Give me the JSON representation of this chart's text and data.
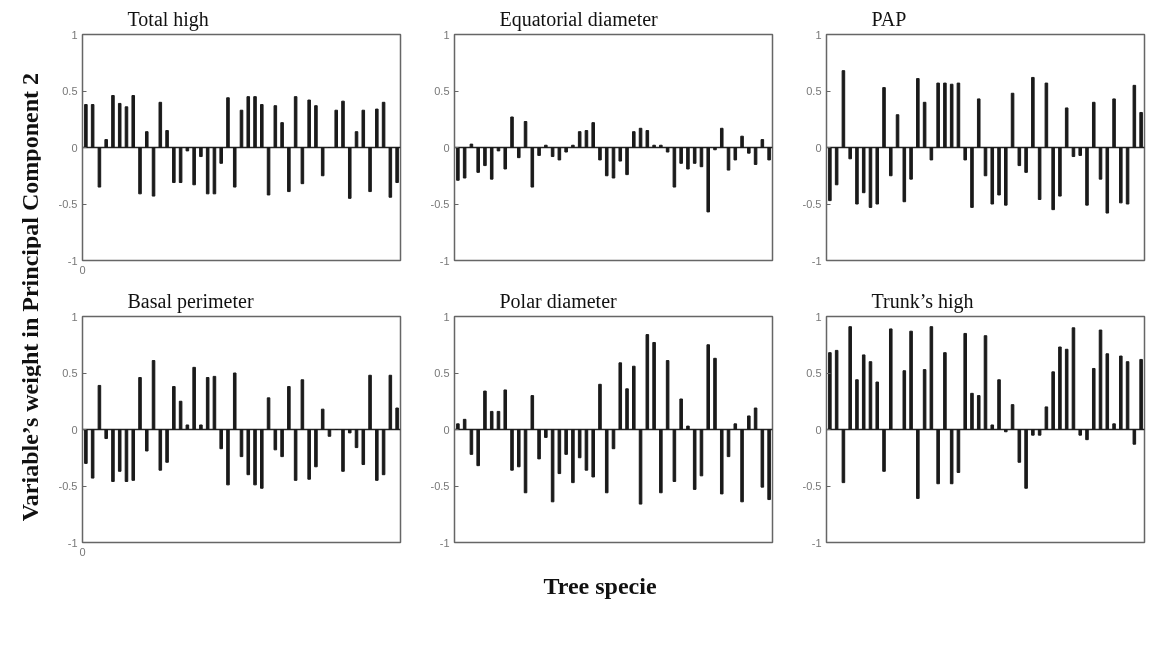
{
  "chart_data": [
    {
      "type": "bar",
      "title": "Total high",
      "ylabel": "Variable’s weight in Principal Component 2",
      "annotations": [
        "0"
      ],
      "categories": [
        null,
        null,
        null,
        null,
        null,
        null,
        null,
        null,
        null,
        null,
        null,
        null,
        null,
        null,
        null,
        null,
        null,
        null,
        null,
        null,
        null,
        null,
        null,
        null,
        null,
        null,
        null,
        null,
        null,
        null,
        null,
        null,
        null,
        null,
        null,
        null,
        null,
        null,
        null,
        null,
        null,
        null,
        null,
        null,
        null,
        null,
        null
      ],
      "values": [
        0.38,
        0.38,
        -0.35,
        0.07,
        0.46,
        0.39,
        0.36,
        0.46,
        -0.41,
        0.14,
        -0.43,
        0.4,
        0.15,
        -0.31,
        -0.31,
        -0.03,
        -0.33,
        -0.08,
        -0.41,
        -0.41,
        -0.14,
        0.44,
        -0.35,
        0.33,
        0.45,
        0.45,
        0.38,
        -0.42,
        0.37,
        0.22,
        -0.39,
        0.45,
        -0.32,
        0.42,
        0.37,
        -0.25,
        0,
        0.33,
        0.41,
        -0.45,
        0.14,
        0.33,
        -0.39,
        0.34,
        0.4,
        -0.44,
        -0.31
      ],
      "color": "#1a1a1a",
      "ylim": [
        -1,
        1
      ],
      "yticks": [
        -1,
        -0.5,
        0,
        0.5,
        1
      ],
      "ref_lines": [
        {
          "axis": "y",
          "value": 0
        }
      ]
    },
    {
      "type": "bar",
      "title": "Equatorial diameter",
      "categories": [
        null,
        null,
        null,
        null,
        null,
        null,
        null,
        null,
        null,
        null,
        null,
        null,
        null,
        null,
        null,
        null,
        null,
        null,
        null,
        null,
        null,
        null,
        null,
        null,
        null,
        null,
        null,
        null,
        null,
        null,
        null,
        null,
        null,
        null,
        null,
        null,
        null,
        null,
        null,
        null,
        null,
        null,
        null,
        null,
        null,
        null,
        null
      ],
      "values": [
        -0.29,
        -0.27,
        0.03,
        -0.22,
        -0.16,
        -0.28,
        -0.03,
        -0.19,
        0.27,
        -0.09,
        0.23,
        -0.35,
        -0.07,
        0.02,
        -0.08,
        -0.11,
        -0.04,
        0.02,
        0.14,
        0.15,
        0.22,
        -0.11,
        -0.25,
        -0.27,
        -0.12,
        -0.24,
        0.14,
        0.17,
        0.15,
        0.02,
        0.02,
        -0.04,
        -0.35,
        -0.14,
        -0.19,
        -0.14,
        -0.17,
        -0.57,
        -0.02,
        0.17,
        -0.2,
        -0.11,
        0.1,
        -0.05,
        -0.15,
        0.07,
        -0.11
      ],
      "color": "#1a1a1a",
      "ylim": [
        -1,
        1
      ],
      "yticks": [
        -1,
        -0.5,
        0,
        0.5,
        1
      ],
      "ref_lines": [
        {
          "axis": "y",
          "value": 0
        }
      ]
    },
    {
      "type": "bar",
      "title": "PAP",
      "categories": [
        null,
        null,
        null,
        null,
        null,
        null,
        null,
        null,
        null,
        null,
        null,
        null,
        null,
        null,
        null,
        null,
        null,
        null,
        null,
        null,
        null,
        null,
        null,
        null,
        null,
        null,
        null,
        null,
        null,
        null,
        null,
        null,
        null,
        null,
        null,
        null,
        null,
        null,
        null,
        null,
        null,
        null,
        null,
        null,
        null,
        null,
        null
      ],
      "values": [
        -0.47,
        -0.33,
        0.68,
        -0.1,
        -0.5,
        -0.4,
        -0.53,
        -0.5,
        0.53,
        -0.25,
        0.29,
        -0.48,
        -0.28,
        0.61,
        0.4,
        -0.11,
        0.57,
        0.57,
        0.56,
        0.57,
        -0.11,
        -0.53,
        0.43,
        -0.25,
        -0.5,
        -0.42,
        -0.51,
        0.48,
        -0.16,
        -0.22,
        0.62,
        -0.46,
        0.57,
        -0.55,
        -0.43,
        0.35,
        -0.08,
        -0.07,
        -0.51,
        0.4,
        -0.28,
        -0.58,
        0.43,
        -0.49,
        -0.5,
        0.55,
        0.31
      ],
      "color": "#1a1a1a",
      "ylim": [
        -1,
        1
      ],
      "yticks": [
        -1,
        -0.5,
        0,
        0.5,
        1
      ],
      "ref_lines": [
        {
          "axis": "y",
          "value": 0
        }
      ]
    },
    {
      "type": "bar",
      "title": "Basal perimeter",
      "annotations": [
        "0"
      ],
      "categories": [
        null,
        null,
        null,
        null,
        null,
        null,
        null,
        null,
        null,
        null,
        null,
        null,
        null,
        null,
        null,
        null,
        null,
        null,
        null,
        null,
        null,
        null,
        null,
        null,
        null,
        null,
        null,
        null,
        null,
        null,
        null,
        null,
        null,
        null,
        null,
        null,
        null,
        null,
        null,
        null,
        null,
        null,
        null,
        null,
        null,
        null,
        null
      ],
      "values": [
        -0.3,
        -0.43,
        0.39,
        -0.08,
        -0.46,
        -0.37,
        -0.46,
        -0.45,
        0.46,
        -0.19,
        0.61,
        -0.36,
        -0.29,
        0.38,
        0.25,
        0.04,
        0.55,
        0.04,
        0.46,
        0.47,
        -0.17,
        -0.49,
        0.5,
        -0.24,
        -0.4,
        -0.49,
        -0.52,
        0.28,
        -0.18,
        -0.24,
        0.38,
        -0.45,
        0.44,
        -0.44,
        -0.33,
        0.18,
        -0.06,
        0,
        -0.37,
        -0.03,
        -0.16,
        -0.31,
        0.48,
        -0.45,
        -0.4,
        0.48,
        0.19
      ],
      "color": "#1a1a1a",
      "ylim": [
        -1,
        1
      ],
      "yticks": [
        -1,
        -0.5,
        0,
        0.5,
        1
      ],
      "ref_lines": [
        {
          "axis": "y",
          "value": 0
        }
      ]
    },
    {
      "type": "bar",
      "title": "Polar diameter",
      "xlabel": "Tree specie",
      "categories": [
        null,
        null,
        null,
        null,
        null,
        null,
        null,
        null,
        null,
        null,
        null,
        null,
        null,
        null,
        null,
        null,
        null,
        null,
        null,
        null,
        null,
        null,
        null,
        null,
        null,
        null,
        null,
        null,
        null,
        null,
        null,
        null,
        null,
        null,
        null,
        null,
        null,
        null,
        null,
        null,
        null,
        null,
        null,
        null,
        null,
        null,
        null
      ],
      "values": [
        0.05,
        0.09,
        -0.22,
        -0.32,
        0.34,
        0.16,
        0.16,
        0.35,
        -0.36,
        -0.33,
        -0.56,
        0.3,
        -0.26,
        -0.07,
        -0.64,
        -0.39,
        -0.22,
        -0.47,
        -0.25,
        -0.36,
        -0.42,
        0.4,
        -0.56,
        -0.17,
        0.59,
        0.36,
        0.56,
        -0.66,
        0.84,
        0.77,
        -0.56,
        0.61,
        -0.46,
        0.27,
        0.03,
        -0.53,
        -0.41,
        0.75,
        0.63,
        -0.57,
        -0.24,
        0.05,
        -0.64,
        0.12,
        0.19,
        -0.51,
        -0.62
      ],
      "color": "#1a1a1a",
      "ylim": [
        -1,
        1
      ],
      "yticks": [
        -1,
        -0.5,
        0,
        0.5,
        1
      ],
      "ref_lines": [
        {
          "axis": "y",
          "value": 0
        }
      ]
    },
    {
      "type": "bar",
      "title": "Trunk’s high",
      "categories": [
        null,
        null,
        null,
        null,
        null,
        null,
        null,
        null,
        null,
        null,
        null,
        null,
        null,
        null,
        null,
        null,
        null,
        null,
        null,
        null,
        null,
        null,
        null,
        null,
        null,
        null,
        null,
        null,
        null,
        null,
        null,
        null,
        null,
        null,
        null,
        null,
        null,
        null,
        null,
        null,
        null,
        null,
        null,
        null,
        null,
        null,
        null
      ],
      "values": [
        0.68,
        0.7,
        -0.47,
        0.91,
        0.44,
        0.66,
        0.6,
        0.42,
        -0.37,
        0.89,
        0,
        0.52,
        0.87,
        -0.61,
        0.53,
        0.91,
        -0.48,
        0.68,
        -0.48,
        -0.38,
        0.85,
        0.32,
        0.3,
        0.83,
        0.04,
        0.44,
        -0.02,
        0.22,
        -0.29,
        -0.52,
        -0.05,
        -0.05,
        0.2,
        0.51,
        0.73,
        0.71,
        0.9,
        -0.05,
        -0.09,
        0.54,
        0.88,
        0.67,
        0.05,
        0.65,
        0.6,
        -0.13,
        0.62
      ],
      "color": "#1a1a1a",
      "ylim": [
        -1,
        1
      ],
      "yticks": [
        -1,
        -0.5,
        0,
        0.5,
        1
      ],
      "ref_lines": [
        {
          "axis": "y",
          "value": 0
        }
      ]
    }
  ]
}
